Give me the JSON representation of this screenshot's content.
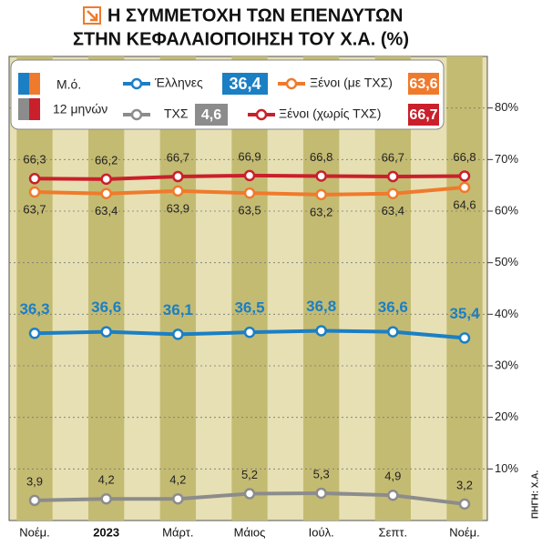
{
  "chart_data": {
    "type": "line",
    "title_lines": [
      "Η ΣΥΜΜΕΤΟΧΗ ΤΩΝ ΕΠΕΝΔΥΤΩΝ",
      "ΣΤΗΝ ΚΕΦΑΛΑΙΟΠΟΙΗΣΗ ΤΟΥ Χ.Α. (%)"
    ],
    "average_label": [
      "Μ.ό.",
      "12 μηνών"
    ],
    "source": "ΠΗΓΗ: Χ.Α.",
    "categories": [
      "Νοέμ.",
      "2023",
      "Μάρτ.",
      "Μάιος",
      "Ιούλ.",
      "Σεπτ.",
      "Νοέμ."
    ],
    "series": [
      {
        "name": "Έλληνες",
        "color": "#1b7fc4",
        "values": [
          36.3,
          36.6,
          36.1,
          36.5,
          36.8,
          36.6,
          35.4
        ],
        "value_labels": [
          "36,3",
          "36,6",
          "36,1",
          "36,5",
          "36,8",
          "36,6",
          "35,4"
        ],
        "average": 36.4,
        "average_label": "36,4"
      },
      {
        "name": "Ξένοι (με ΤΧΣ)",
        "color": "#f07a2c",
        "values": [
          63.7,
          63.4,
          63.9,
          63.5,
          63.2,
          63.4,
          64.6
        ],
        "value_labels": [
          "63,7",
          "63,4",
          "63,9",
          "63,5",
          "63,2",
          "63,4",
          "64,6"
        ],
        "average": 63.6,
        "average_label": "63,6"
      },
      {
        "name": "ΤΧΣ",
        "color": "#8c8c8c",
        "values": [
          3.9,
          4.2,
          4.2,
          5.2,
          5.3,
          4.9,
          3.2
        ],
        "value_labels": [
          "3,9",
          "4,2",
          "4,2",
          "5,2",
          "5,3",
          "4,9",
          "3,2"
        ],
        "average": 4.6,
        "average_label": "4,6"
      },
      {
        "name": "Ξένοι (χωρίς ΤΧΣ)",
        "color": "#c9202b",
        "values": [
          66.3,
          66.2,
          66.7,
          66.9,
          66.8,
          66.7,
          66.8
        ],
        "value_labels": [
          "66,3",
          "66,2",
          "66,7",
          "66,9",
          "66,8",
          "66,7",
          "66,8"
        ],
        "average": 66.7,
        "average_label": "66,7"
      }
    ],
    "ylim": [
      0,
      90
    ],
    "yticks": [
      {
        "value": 10,
        "label": "10%"
      },
      {
        "value": 20,
        "label": "20%"
      },
      {
        "value": 30,
        "label": "30%"
      },
      {
        "value": 40,
        "label": "40%"
      },
      {
        "value": 50,
        "label": "50%"
      },
      {
        "value": 60,
        "label": "60%"
      },
      {
        "value": 70,
        "label": "70%"
      },
      {
        "value": 80,
        "label": "80%"
      }
    ],
    "grid": true
  }
}
